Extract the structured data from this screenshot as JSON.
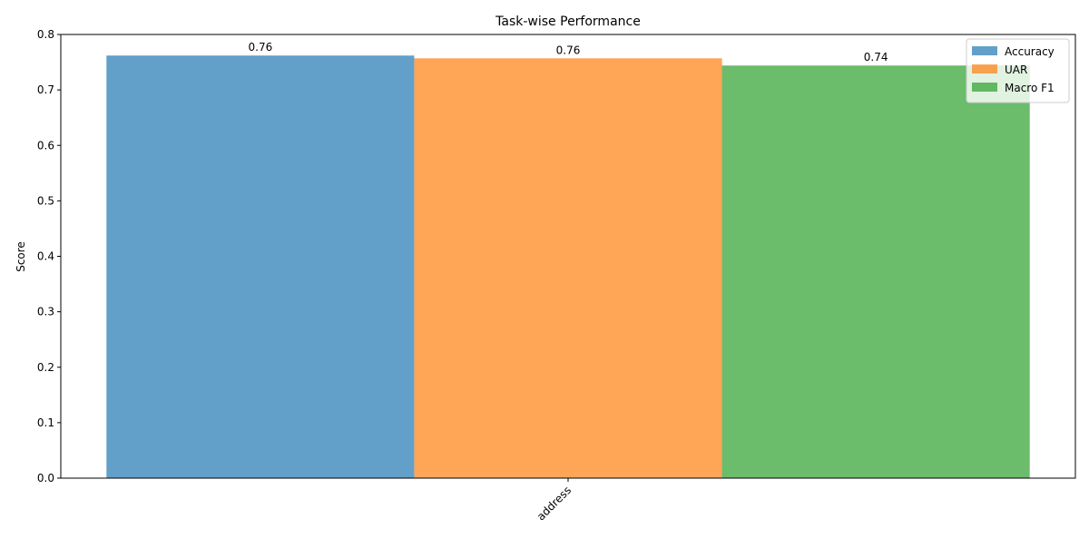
{
  "chart_data": {
    "type": "bar",
    "title": "Task-wise Performance",
    "xlabel": "",
    "ylabel": "Score",
    "categories": [
      "address"
    ],
    "ylim": [
      0,
      0.8
    ],
    "yticks": [
      "0.0",
      "0.1",
      "0.2",
      "0.3",
      "0.4",
      "0.5",
      "0.6",
      "0.7",
      "0.8"
    ],
    "grid": false,
    "legend_position": "top-right",
    "series": [
      {
        "name": "Accuracy",
        "values": [
          0.762
        ],
        "labels": [
          "0.76"
        ],
        "color": "#1f77b4"
      },
      {
        "name": "UAR",
        "values": [
          0.757
        ],
        "labels": [
          "0.76"
        ],
        "color": "#ff7f0e"
      },
      {
        "name": "Macro F1",
        "values": [
          0.744
        ],
        "labels": [
          "0.74"
        ],
        "color": "#2ca02c"
      }
    ],
    "bar_opacity": 0.7
  }
}
